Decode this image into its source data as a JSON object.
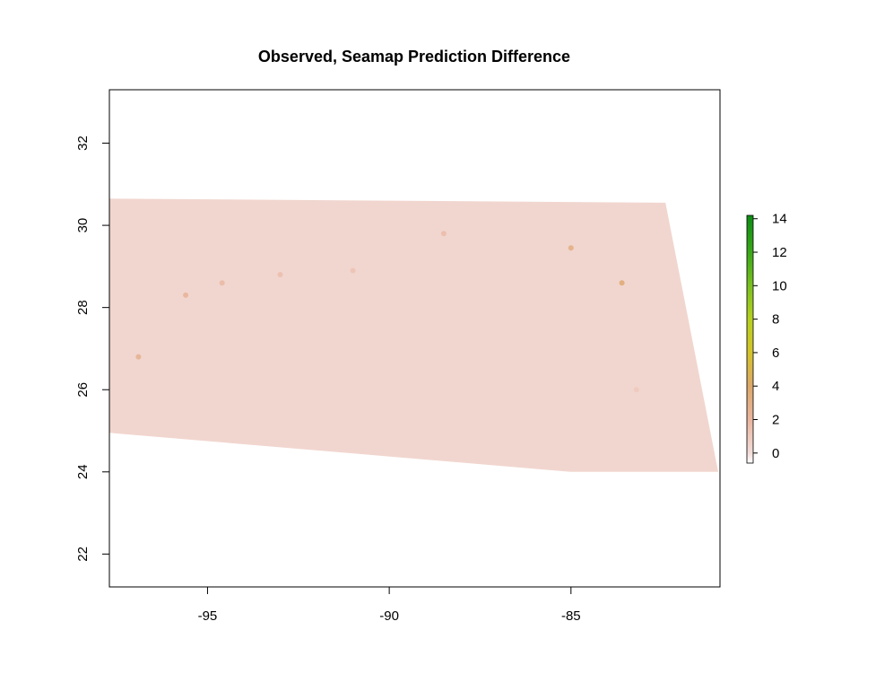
{
  "chart_data": {
    "type": "heatmap",
    "title": "Observed, Seamap Prediction Difference",
    "xlabel": "",
    "ylabel": "",
    "xlim": [
      -97.7,
      -80.9
    ],
    "ylim": [
      21.2,
      33.3
    ],
    "x_ticks": [
      -95,
      -90,
      -85
    ],
    "x_tick_labels": [
      "-95",
      "-90",
      "-85"
    ],
    "y_ticks": [
      22,
      24,
      26,
      28,
      30,
      32
    ],
    "y_tick_labels": [
      "22",
      "24",
      "26",
      "28",
      "30",
      "32"
    ],
    "grid": false,
    "domain_polygon": [
      [
        -97.7,
        30.65
      ],
      [
        -82.4,
        30.55
      ],
      [
        -80.95,
        24.0
      ],
      [
        -85.0,
        24.0
      ],
      [
        -97.7,
        24.95
      ]
    ],
    "base_value": 0.3,
    "hotspots": [
      {
        "lon": -96.9,
        "lat": 26.8,
        "value": 2.5
      },
      {
        "lon": -95.6,
        "lat": 28.3,
        "value": 2.2
      },
      {
        "lon": -94.6,
        "lat": 28.6,
        "value": 1.8
      },
      {
        "lon": -93.0,
        "lat": 28.8,
        "value": 1.5
      },
      {
        "lon": -91.0,
        "lat": 28.9,
        "value": 1.3
      },
      {
        "lon": -88.5,
        "lat": 29.8,
        "value": 1.6
      },
      {
        "lon": -85.0,
        "lat": 29.45,
        "value": 3.0
      },
      {
        "lon": -83.6,
        "lat": 28.6,
        "value": 3.5
      },
      {
        "lon": -83.2,
        "lat": 26.0,
        "value": 1.0
      }
    ],
    "legend": {
      "position": "right",
      "min": -0.6,
      "max": 14.2,
      "ticks": [
        0,
        2,
        4,
        6,
        8,
        10,
        12,
        14
      ],
      "tick_labels": [
        "0",
        "2",
        "4",
        "6",
        "8",
        "10",
        "12",
        "14"
      ],
      "color_stops": [
        {
          "value": -0.6,
          "color": "#ffffff"
        },
        {
          "value": 0,
          "color": "#f2dcd8"
        },
        {
          "value": 2,
          "color": "#e9b59e"
        },
        {
          "value": 4,
          "color": "#dca86a"
        },
        {
          "value": 6,
          "color": "#d4c32a"
        },
        {
          "value": 8,
          "color": "#b6d020"
        },
        {
          "value": 10,
          "color": "#7ac020"
        },
        {
          "value": 12,
          "color": "#3aa818"
        },
        {
          "value": 14.2,
          "color": "#0d8c14"
        }
      ]
    },
    "colors": {
      "frame": "#000000",
      "domain_fill": "#f3ddd9",
      "background": "#ffffff"
    }
  }
}
